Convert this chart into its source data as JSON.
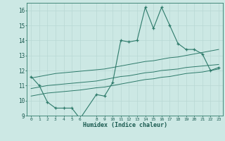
{
  "xlabel": "Humidex (Indice chaleur)",
  "background_color": "#cce8e4",
  "grid_color": "#b8d8d4",
  "line_color": "#2d7a6a",
  "x_main": [
    0,
    1,
    2,
    3,
    4,
    5,
    6,
    8,
    9,
    10,
    11,
    12,
    13,
    14,
    15,
    16,
    17,
    18,
    19,
    20,
    21,
    22,
    23
  ],
  "y_main": [
    11.6,
    11.0,
    9.9,
    9.5,
    9.5,
    9.5,
    8.8,
    10.4,
    10.3,
    11.2,
    14.0,
    13.9,
    14.0,
    16.2,
    14.8,
    16.2,
    15.0,
    13.8,
    13.4,
    13.4,
    13.1,
    12.0,
    12.2
  ],
  "x_trend": [
    0,
    1,
    2,
    3,
    4,
    5,
    6,
    8,
    9,
    10,
    11,
    12,
    13,
    14,
    15,
    16,
    17,
    18,
    19,
    20,
    21,
    22,
    23
  ],
  "y_trend1": [
    11.5,
    11.6,
    11.7,
    11.8,
    11.85,
    11.9,
    11.95,
    12.05,
    12.1,
    12.2,
    12.3,
    12.4,
    12.5,
    12.6,
    12.65,
    12.75,
    12.85,
    12.9,
    13.0,
    13.1,
    13.2,
    13.3,
    13.4
  ],
  "y_trend2": [
    10.8,
    10.9,
    11.0,
    11.05,
    11.1,
    11.15,
    11.2,
    11.3,
    11.4,
    11.5,
    11.6,
    11.65,
    11.75,
    11.85,
    11.9,
    12.0,
    12.05,
    12.1,
    12.2,
    12.25,
    12.3,
    12.35,
    12.4
  ],
  "y_trend3": [
    10.3,
    10.4,
    10.5,
    10.55,
    10.6,
    10.65,
    10.7,
    10.85,
    10.9,
    11.0,
    11.1,
    11.2,
    11.3,
    11.4,
    11.45,
    11.55,
    11.6,
    11.7,
    11.8,
    11.85,
    11.9,
    12.0,
    12.1
  ],
  "xlim": [
    -0.5,
    23.5
  ],
  "ylim": [
    9,
    16.5
  ],
  "yticks": [
    9,
    10,
    11,
    12,
    13,
    14,
    15,
    16
  ],
  "xtick_vals": [
    0,
    1,
    2,
    3,
    4,
    5,
    6,
    8,
    9,
    10,
    11,
    12,
    13,
    14,
    15,
    16,
    17,
    18,
    19,
    20,
    21,
    22,
    23
  ],
  "xtick_labels": [
    "0",
    "1",
    "2",
    "3",
    "4",
    "5",
    "6",
    "8",
    "9",
    "10",
    "11",
    "12",
    "13",
    "14",
    "15",
    "16",
    "17",
    "18",
    "19",
    "20",
    "21",
    "22",
    "23"
  ]
}
